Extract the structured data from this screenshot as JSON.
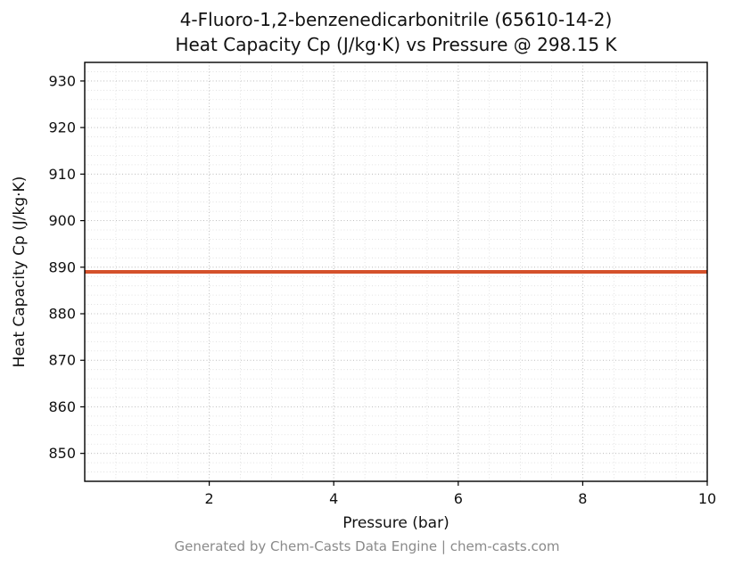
{
  "header": {
    "title_line1": "4-Fluoro-1,2-benzenedicarbonitrile (65610-14-2)",
    "title_line2": "Heat Capacity Cp (J/kg·K) vs Pressure @ 298.15 K"
  },
  "axes": {
    "xlabel": "Pressure (bar)",
    "ylabel": "Heat Capacity Cp (J/kg·K)"
  },
  "footer": {
    "text": "Generated by Chem-Casts Data Engine | chem-casts.com"
  },
  "chart_data": {
    "type": "line",
    "title": "4-Fluoro-1,2-benzenedicarbonitrile (65610-14-2) Heat Capacity Cp (J/kg·K) vs Pressure @ 298.15 K",
    "xlabel": "Pressure (bar)",
    "ylabel": "Heat Capacity Cp (J/kg·K)",
    "xlim": [
      0,
      10
    ],
    "ylim": [
      844,
      934
    ],
    "xticks": [
      2,
      4,
      6,
      8,
      10
    ],
    "yticks": [
      850,
      860,
      870,
      880,
      890,
      900,
      910,
      920,
      930
    ],
    "xminor": 0.5,
    "yminor": 2,
    "grid": true,
    "grid_style": "dotted",
    "legend": "none",
    "series": [
      {
        "name": "Heat Capacity Cp at 298.15 K",
        "color": "#d4512b",
        "linewidth": 4,
        "x": [
          0,
          10
        ],
        "y": [
          889,
          889
        ]
      }
    ]
  }
}
